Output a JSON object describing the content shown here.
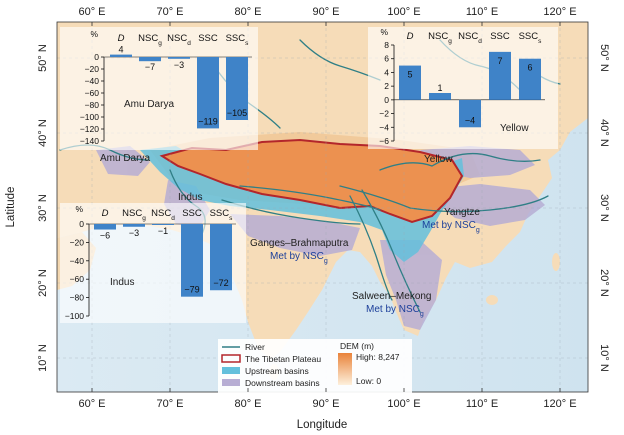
{
  "axes": {
    "x_title": "Longitude",
    "y_title": "Latitude",
    "lon_ticks": [
      "60° E",
      "70° E",
      "80° E",
      "90° E",
      "100° E",
      "110° E",
      "120° E"
    ],
    "lat_ticks": [
      "50° N",
      "40° N",
      "30° N",
      "20° N",
      "10° N"
    ]
  },
  "map_labels": {
    "amu_darya": "Amu Darya",
    "indus": "Indus",
    "yellow": "Yellow",
    "yangtze": "Yangtze",
    "ganges": "Ganges–Brahmaputra",
    "salween": "Salween–Mekong"
  },
  "met_labels": {
    "ganges_pre": "Met by NSC",
    "ganges_sub": "g",
    "yangtze_pre": "Met by NSC",
    "yangtze_sub": "g",
    "salween_pre": "Met by NSC",
    "salween_sub": "g"
  },
  "legend": {
    "river": "River",
    "plateau": "The Tibetan Plateau",
    "upstream": "Upstream basins",
    "downstream": "Downstream basins",
    "dem_title": "DEM (m)",
    "dem_high": "High: 8,247",
    "dem_low": "Low: 0"
  },
  "colors": {
    "bar": "#3f83c8",
    "plateau_outline": "#b3262b",
    "upstream": "#63c0dc",
    "downstream": "#b7aed4",
    "river": "#2f7f86",
    "dem_high": "#e9833a",
    "dem_low": "#fdf0dc"
  },
  "chart_data": [
    {
      "type": "bar",
      "name": "Amu Darya",
      "unit": "%",
      "categories": [
        {
          "base": "D",
          "sub": ""
        },
        {
          "base": "NSC",
          "sub": "g"
        },
        {
          "base": "NSC",
          "sub": "d"
        },
        {
          "base": "SSC",
          "sub": ""
        },
        {
          "base": "SSC",
          "sub": "s"
        }
      ],
      "values": [
        4,
        -7,
        -3,
        -119,
        -105
      ],
      "ylim": [
        -140,
        0
      ],
      "yticks": [
        0,
        -20,
        -40,
        -60,
        -80,
        -100,
        -120,
        -140
      ]
    },
    {
      "type": "bar",
      "name": "Yellow",
      "unit": "%",
      "categories": [
        {
          "base": "D",
          "sub": ""
        },
        {
          "base": "NSC",
          "sub": "g"
        },
        {
          "base": "NSC",
          "sub": "d"
        },
        {
          "base": "SSC",
          "sub": ""
        },
        {
          "base": "SSC",
          "sub": "s"
        }
      ],
      "values": [
        5,
        1,
        -4,
        7,
        6
      ],
      "ylim": [
        -6,
        8
      ],
      "yticks": [
        8,
        6,
        4,
        2,
        0,
        -2,
        -4,
        -6
      ]
    },
    {
      "type": "bar",
      "name": "Indus",
      "unit": "%",
      "categories": [
        {
          "base": "D",
          "sub": ""
        },
        {
          "base": "NSC",
          "sub": "g"
        },
        {
          "base": "NSC",
          "sub": "d"
        },
        {
          "base": "SSC",
          "sub": ""
        },
        {
          "base": "SSC",
          "sub": "s"
        }
      ],
      "values": [
        -6,
        -3,
        -1,
        -79,
        -72
      ],
      "ylim": [
        -100,
        0
      ],
      "yticks": [
        0,
        -20,
        -40,
        -60,
        -80,
        -100
      ]
    }
  ]
}
